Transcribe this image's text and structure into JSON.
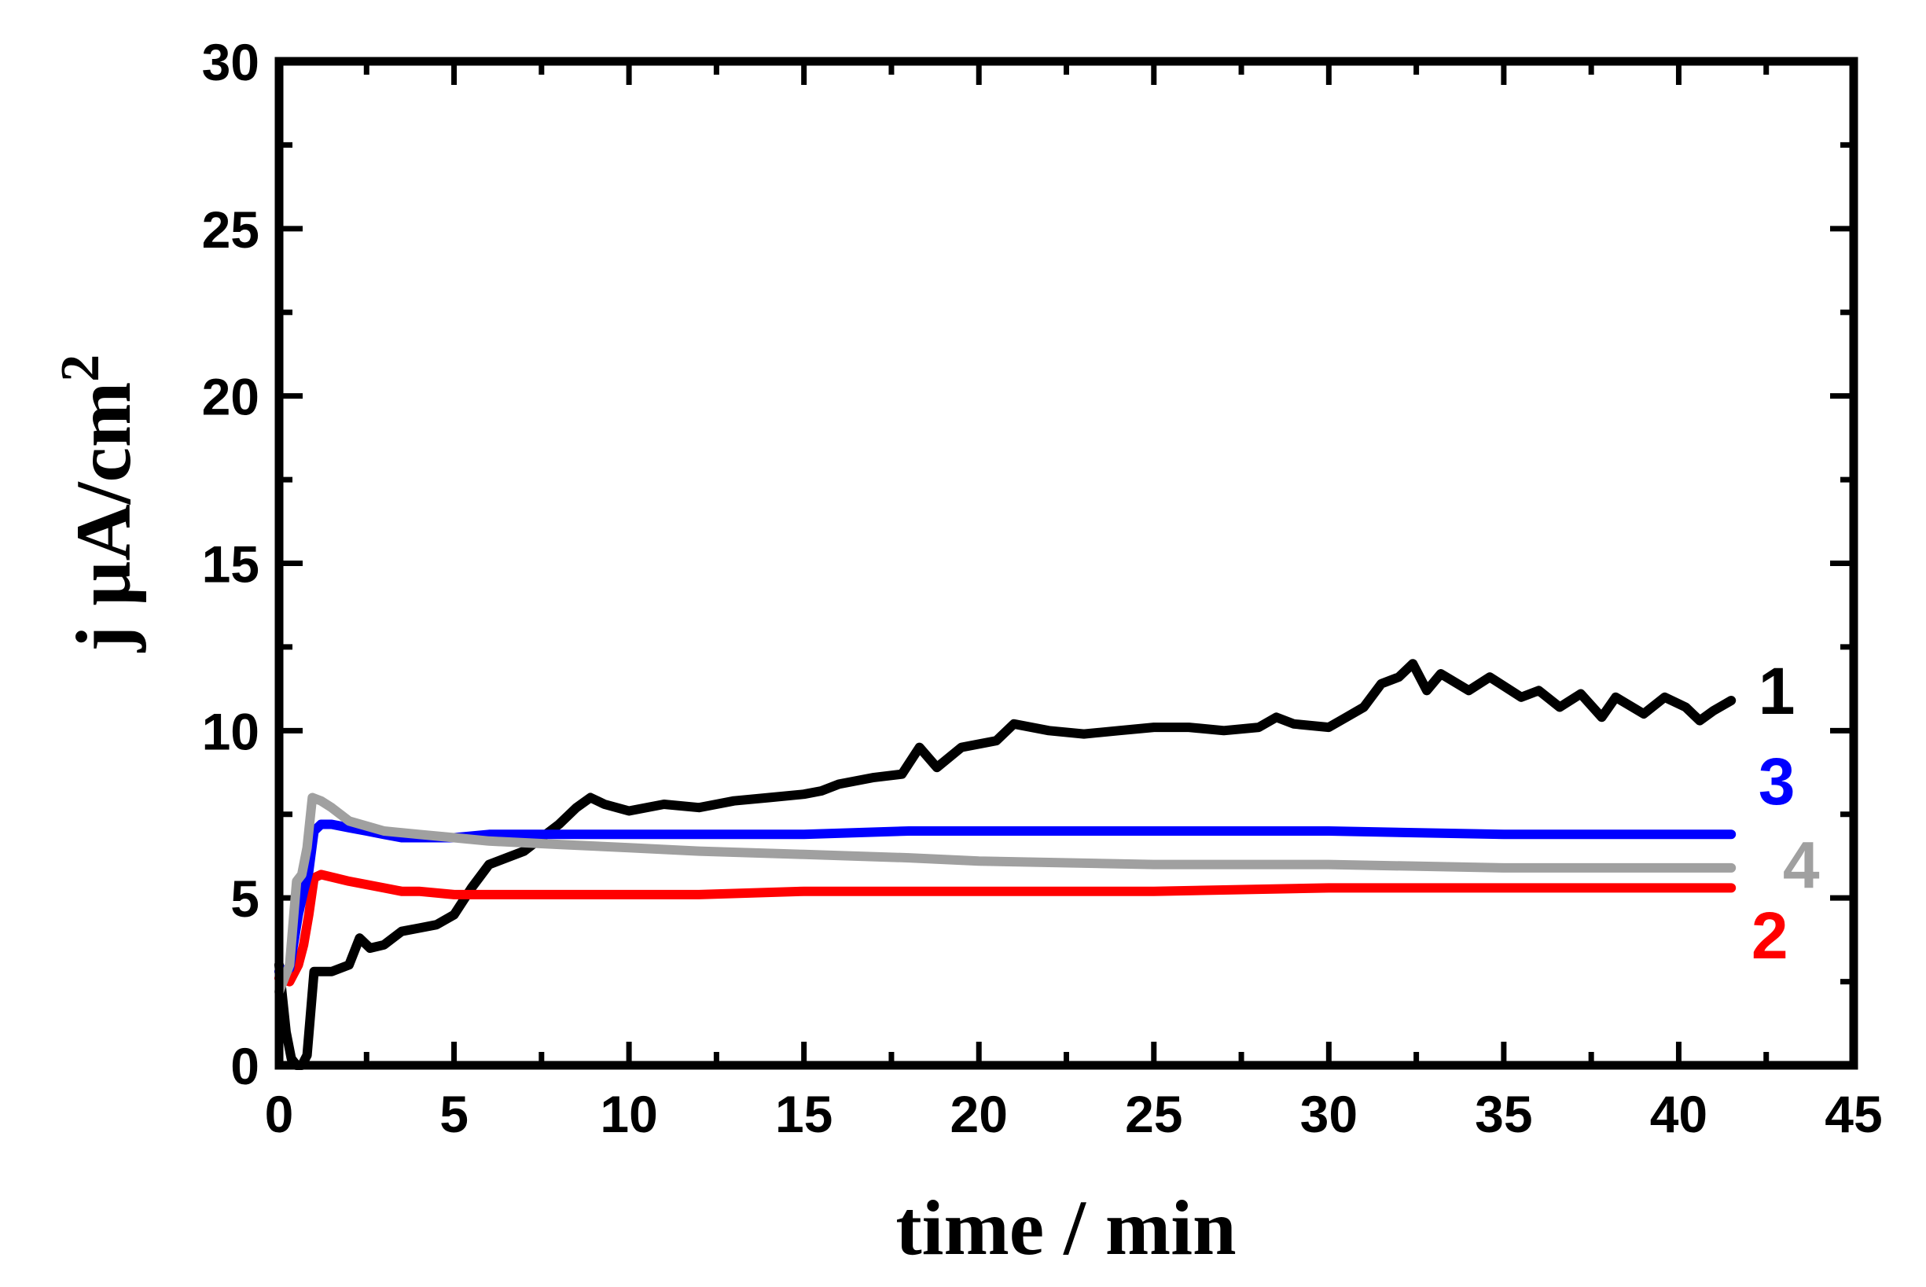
{
  "chart_data": {
    "type": "line",
    "xlabel": "time / min",
    "ylabel_main": "j µA/cm",
    "ylabel_sup": "2",
    "xlim": [
      0,
      45
    ],
    "ylim": [
      0,
      30
    ],
    "xticks": [
      0,
      5,
      10,
      15,
      20,
      25,
      30,
      35,
      40,
      45
    ],
    "yticks": [
      0,
      5,
      10,
      15,
      20,
      25,
      30
    ],
    "grid": false,
    "series": [
      {
        "name": "1",
        "color": "#000000",
        "x": [
          0,
          0.2,
          0.35,
          0.5,
          0.65,
          0.8,
          1.0,
          1.5,
          2.0,
          2.3,
          2.6,
          3.0,
          3.5,
          4.0,
          4.5,
          5.0,
          5.5,
          6.0,
          6.5,
          7.0,
          7.5,
          8.0,
          8.5,
          8.9,
          9.3,
          10.0,
          11.0,
          12.0,
          13.0,
          14.0,
          15.0,
          15.5,
          16.0,
          17.0,
          17.8,
          18.3,
          18.8,
          19.5,
          20.5,
          21.0,
          22.0,
          23.0,
          24.0,
          25.0,
          26.0,
          27.0,
          28.0,
          28.5,
          29.0,
          30.0,
          30.5,
          31.0,
          31.5,
          32.0,
          32.4,
          32.8,
          33.2,
          34.0,
          34.6,
          35.5,
          36.0,
          36.6,
          37.2,
          37.8,
          38.2,
          39.0,
          39.6,
          40.2,
          40.6,
          41.0,
          41.5
        ],
        "values": [
          3.0,
          1.0,
          0.2,
          0.0,
          0.0,
          0.3,
          2.8,
          2.8,
          3.0,
          3.8,
          3.5,
          3.6,
          4.0,
          4.1,
          4.2,
          4.5,
          5.3,
          6.0,
          6.2,
          6.4,
          6.8,
          7.2,
          7.7,
          8.0,
          7.8,
          7.6,
          7.8,
          7.7,
          7.9,
          8.0,
          8.1,
          8.2,
          8.4,
          8.6,
          8.7,
          9.5,
          8.9,
          9.5,
          9.7,
          10.2,
          10.0,
          9.9,
          10.0,
          10.1,
          10.1,
          10.0,
          10.1,
          10.4,
          10.2,
          10.1,
          10.4,
          10.7,
          11.4,
          11.6,
          12.0,
          11.2,
          11.7,
          11.2,
          11.6,
          11.0,
          11.2,
          10.7,
          11.1,
          10.4,
          11.0,
          10.5,
          11.0,
          10.7,
          10.3,
          10.6,
          10.9
        ]
      },
      {
        "name": "2",
        "color": "#ff0000",
        "x": [
          0,
          0.3,
          0.55,
          0.7,
          0.85,
          1.0,
          1.2,
          1.6,
          2.0,
          2.5,
          3.0,
          3.5,
          4.0,
          5.0,
          6.0,
          8.0,
          10.0,
          12.0,
          15.0,
          18.0,
          20.0,
          25.0,
          30.0,
          35.0,
          41.5
        ],
        "values": [
          2.6,
          2.5,
          3.0,
          3.6,
          4.5,
          5.6,
          5.7,
          5.6,
          5.5,
          5.4,
          5.3,
          5.2,
          5.2,
          5.1,
          5.1,
          5.1,
          5.1,
          5.1,
          5.2,
          5.2,
          5.2,
          5.2,
          5.3,
          5.3,
          5.3
        ]
      },
      {
        "name": "3",
        "color": "#0000ff",
        "x": [
          0,
          0.3,
          0.55,
          0.7,
          0.85,
          1.0,
          1.2,
          1.5,
          2.0,
          2.5,
          3.0,
          3.5,
          4.0,
          5.0,
          6.0,
          8.0,
          10.0,
          12.0,
          15.0,
          18.0,
          20.0,
          25.0,
          30.0,
          35.0,
          41.5
        ],
        "values": [
          2.8,
          2.9,
          4.5,
          5.2,
          5.8,
          7.0,
          7.2,
          7.2,
          7.1,
          7.0,
          6.9,
          6.8,
          6.8,
          6.8,
          6.9,
          6.9,
          6.9,
          6.9,
          6.9,
          7.0,
          7.0,
          7.0,
          7.0,
          6.9,
          6.9
        ]
      },
      {
        "name": "4",
        "color": "#a0a0a0",
        "x": [
          0,
          0.3,
          0.5,
          0.65,
          0.8,
          0.95,
          1.2,
          1.5,
          2.0,
          3.0,
          4.0,
          5.0,
          6.0,
          8.0,
          10.0,
          12.0,
          15.0,
          18.0,
          20.0,
          25.0,
          30.0,
          35.0,
          41.5
        ],
        "values": [
          2.2,
          3.0,
          5.5,
          5.7,
          6.5,
          8.0,
          7.9,
          7.7,
          7.3,
          7.0,
          6.9,
          6.8,
          6.7,
          6.6,
          6.5,
          6.4,
          6.3,
          6.2,
          6.1,
          6.0,
          6.0,
          5.9,
          5.9
        ]
      }
    ],
    "labels": [
      {
        "text": "1",
        "color": "#000000",
        "x": 42.8,
        "y": 10.5
      },
      {
        "text": "3",
        "color": "#0000ff",
        "x": 42.8,
        "y": 7.8
      },
      {
        "text": "4",
        "color": "#a0a0a0",
        "x": 43.5,
        "y": 5.3
      },
      {
        "text": "2",
        "color": "#ff0000",
        "x": 42.6,
        "y": 3.2
      }
    ]
  }
}
